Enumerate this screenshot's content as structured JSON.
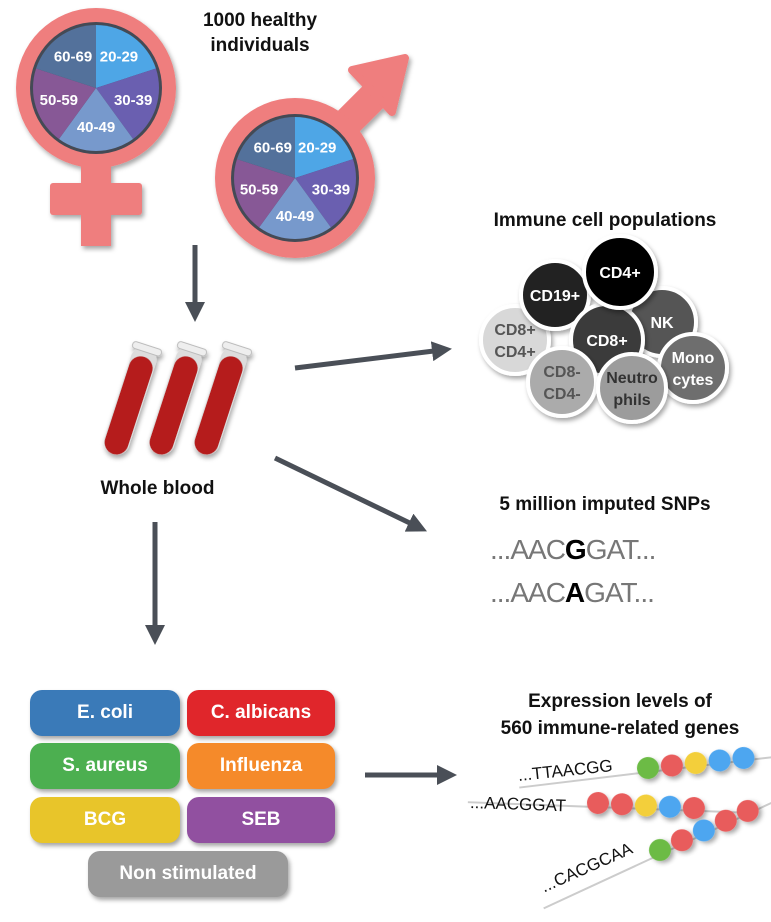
{
  "title": [
    "1000 healthy",
    "individuals"
  ],
  "age_groups": [
    "20-29",
    "30-39",
    "40-49",
    "50-59",
    "60-69"
  ],
  "age_colors": [
    "#4ea6e6",
    "#6a5fb0",
    "#7799cc",
    "#875896",
    "#53719b"
  ],
  "sex_symbol_color": "#ef7e7e",
  "whole_blood": "Whole blood",
  "immune": {
    "title": "Immune cell populations",
    "cells": [
      {
        "label": "CD19",
        "sup": "+",
        "color": "#222222",
        "text": "#fff"
      },
      {
        "label": "CD4",
        "sup": "+",
        "color": "#000000",
        "text": "#fff"
      },
      {
        "label": "NK",
        "sup": "",
        "color": "#555555",
        "text": "#fff"
      },
      {
        "label": "CD8",
        "sup": "+",
        "color": "#3a3a3a",
        "text": "#fff"
      },
      {
        "label": "CD8+\nCD4+",
        "sup": "",
        "color": "#d8d8d8",
        "text": "#555"
      },
      {
        "label": "CD8-\nCD4-",
        "sup": "",
        "color": "#ababab",
        "text": "#555"
      },
      {
        "label": "Neutro\nphils",
        "sup": "",
        "color": "#9c9c9c",
        "text": "#333"
      },
      {
        "label": "Mono\ncytes",
        "sup": "",
        "color": "#6e6e6e",
        "text": "#fff"
      }
    ]
  },
  "snps": {
    "title": "5 million imputed SNPs",
    "seq1": {
      "pre": "...AAC",
      "alt": "G",
      "post": "GAT..."
    },
    "seq2": {
      "pre": "...AAC",
      "alt": "A",
      "post": "GAT..."
    }
  },
  "stimuli": [
    {
      "label": "E. coli",
      "color": "#3a7ab8"
    },
    {
      "label": "C. albicans",
      "color": "#e0262b"
    },
    {
      "label": "S. aureus",
      "color": "#4caf50"
    },
    {
      "label": "Influenza",
      "color": "#f58a2a"
    },
    {
      "label": "BCG",
      "color": "#e8c52a"
    },
    {
      "label": "SEB",
      "color": "#9150a0"
    },
    {
      "label": "Non stimulated",
      "color": "#9a9a9a"
    }
  ],
  "expression": {
    "title": [
      "Expression levels of",
      "560 immune-related genes"
    ],
    "rows": [
      {
        "seq": "...TTAACGG",
        "dots": [
          "#6cbb45",
          "#e85b5b",
          "#f3cf3a",
          "#4ea6f0",
          "#4ea6f0"
        ]
      },
      {
        "seq": "...AACGGAT",
        "dots": [
          "#e85b5b",
          "#e85b5b",
          "#f3cf3a",
          "#4ea6f0",
          "#e85b5b"
        ]
      },
      {
        "seq": "...CACGCAA",
        "dots": [
          "#6cbb45",
          "#e85b5b",
          "#4ea6f0",
          "#e85b5b",
          "#e85b5b"
        ]
      }
    ]
  }
}
